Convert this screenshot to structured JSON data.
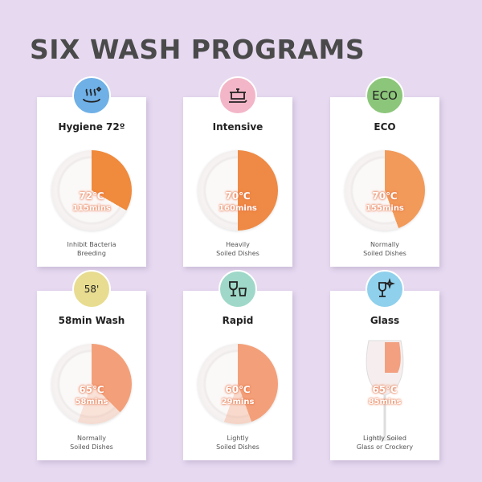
{
  "heading": "SIX WASH PROGRAMS",
  "programs": [
    {
      "name": "Hygiene 72º",
      "temp": "72℃",
      "time": "115mins",
      "desc1": "Inhibit Bacteria",
      "desc2": "Breeding",
      "icon": "steam-dish-icon",
      "icon_color": "#6fb0e6"
    },
    {
      "name": "Intensive",
      "temp": "70℃",
      "time": "160mins",
      "desc1": "Heavily",
      "desc2": "Soiled Dishes",
      "icon": "pot-icon",
      "icon_color": "#f3b6c8"
    },
    {
      "name": "ECO",
      "temp": "70℃",
      "time": "155mins",
      "desc1": "Normally",
      "desc2": "Soiled Dishes",
      "icon": "eco-icon",
      "icon_label": "ECO",
      "icon_color": "#8cc67a"
    },
    {
      "name": "58min Wash",
      "temp": "65℃",
      "time": "58mins",
      "desc1": "Normally",
      "desc2": "Soiled Dishes",
      "icon": "timer-icon",
      "icon_label": "58'",
      "icon_color": "#e8dc90"
    },
    {
      "name": "Rapid",
      "temp": "60℃",
      "time": "29mins",
      "desc1": "Lightly",
      "desc2": "Soiled Dishes",
      "icon": "glasses-icon",
      "icon_color": "#9fd8c8"
    },
    {
      "name": "Glass",
      "temp": "65℃",
      "time": "85mins",
      "desc1": "Lightly Soiled",
      "desc2": "Glass or Crockery",
      "icon": "sparkle-glass-icon",
      "icon_color": "#8fd0ec"
    }
  ]
}
